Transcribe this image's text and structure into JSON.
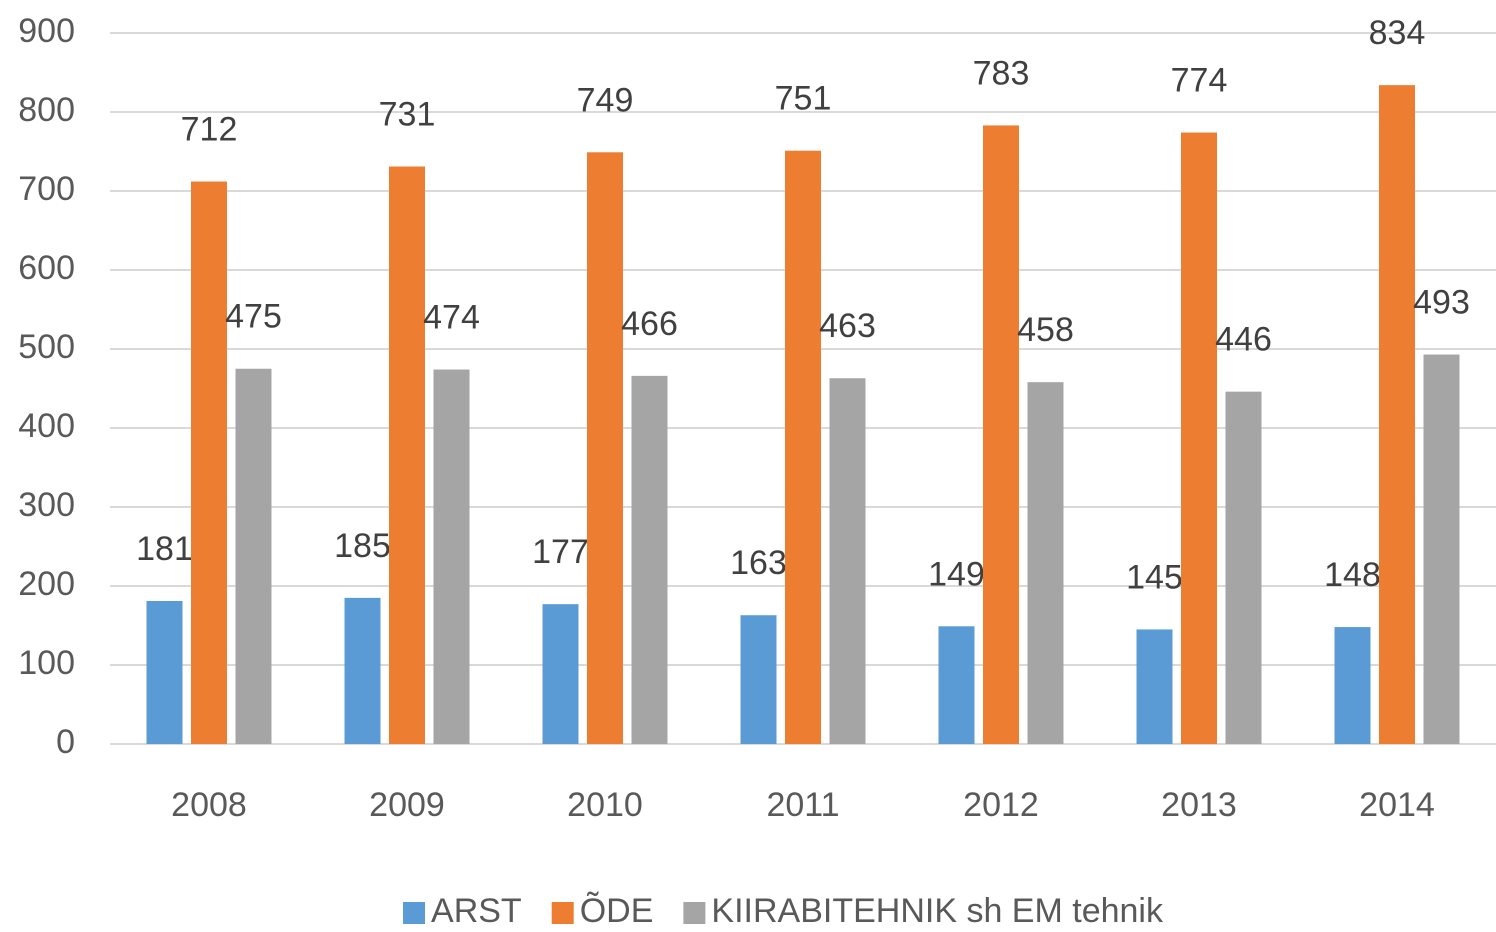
{
  "chart_data": {
    "type": "bar",
    "categories": [
      "2008",
      "2009",
      "2010",
      "2011",
      "2012",
      "2013",
      "2014"
    ],
    "series": [
      {
        "name": "ARST",
        "color": "#5b9bd5",
        "values": [
          181,
          185,
          177,
          163,
          149,
          145,
          148
        ]
      },
      {
        "name": "ÕDE",
        "color": "#ed7d31",
        "values": [
          712,
          731,
          749,
          751,
          783,
          774,
          834
        ]
      },
      {
        "name": "KIIRABITEHNIK sh EM tehnik",
        "color": "#a5a5a5",
        "values": [
          475,
          474,
          466,
          463,
          458,
          446,
          493
        ]
      }
    ],
    "ylim": [
      0,
      900
    ],
    "yticks": [
      0,
      100,
      200,
      300,
      400,
      500,
      600,
      700,
      800,
      900
    ],
    "grid": true,
    "legend": "bottom"
  }
}
